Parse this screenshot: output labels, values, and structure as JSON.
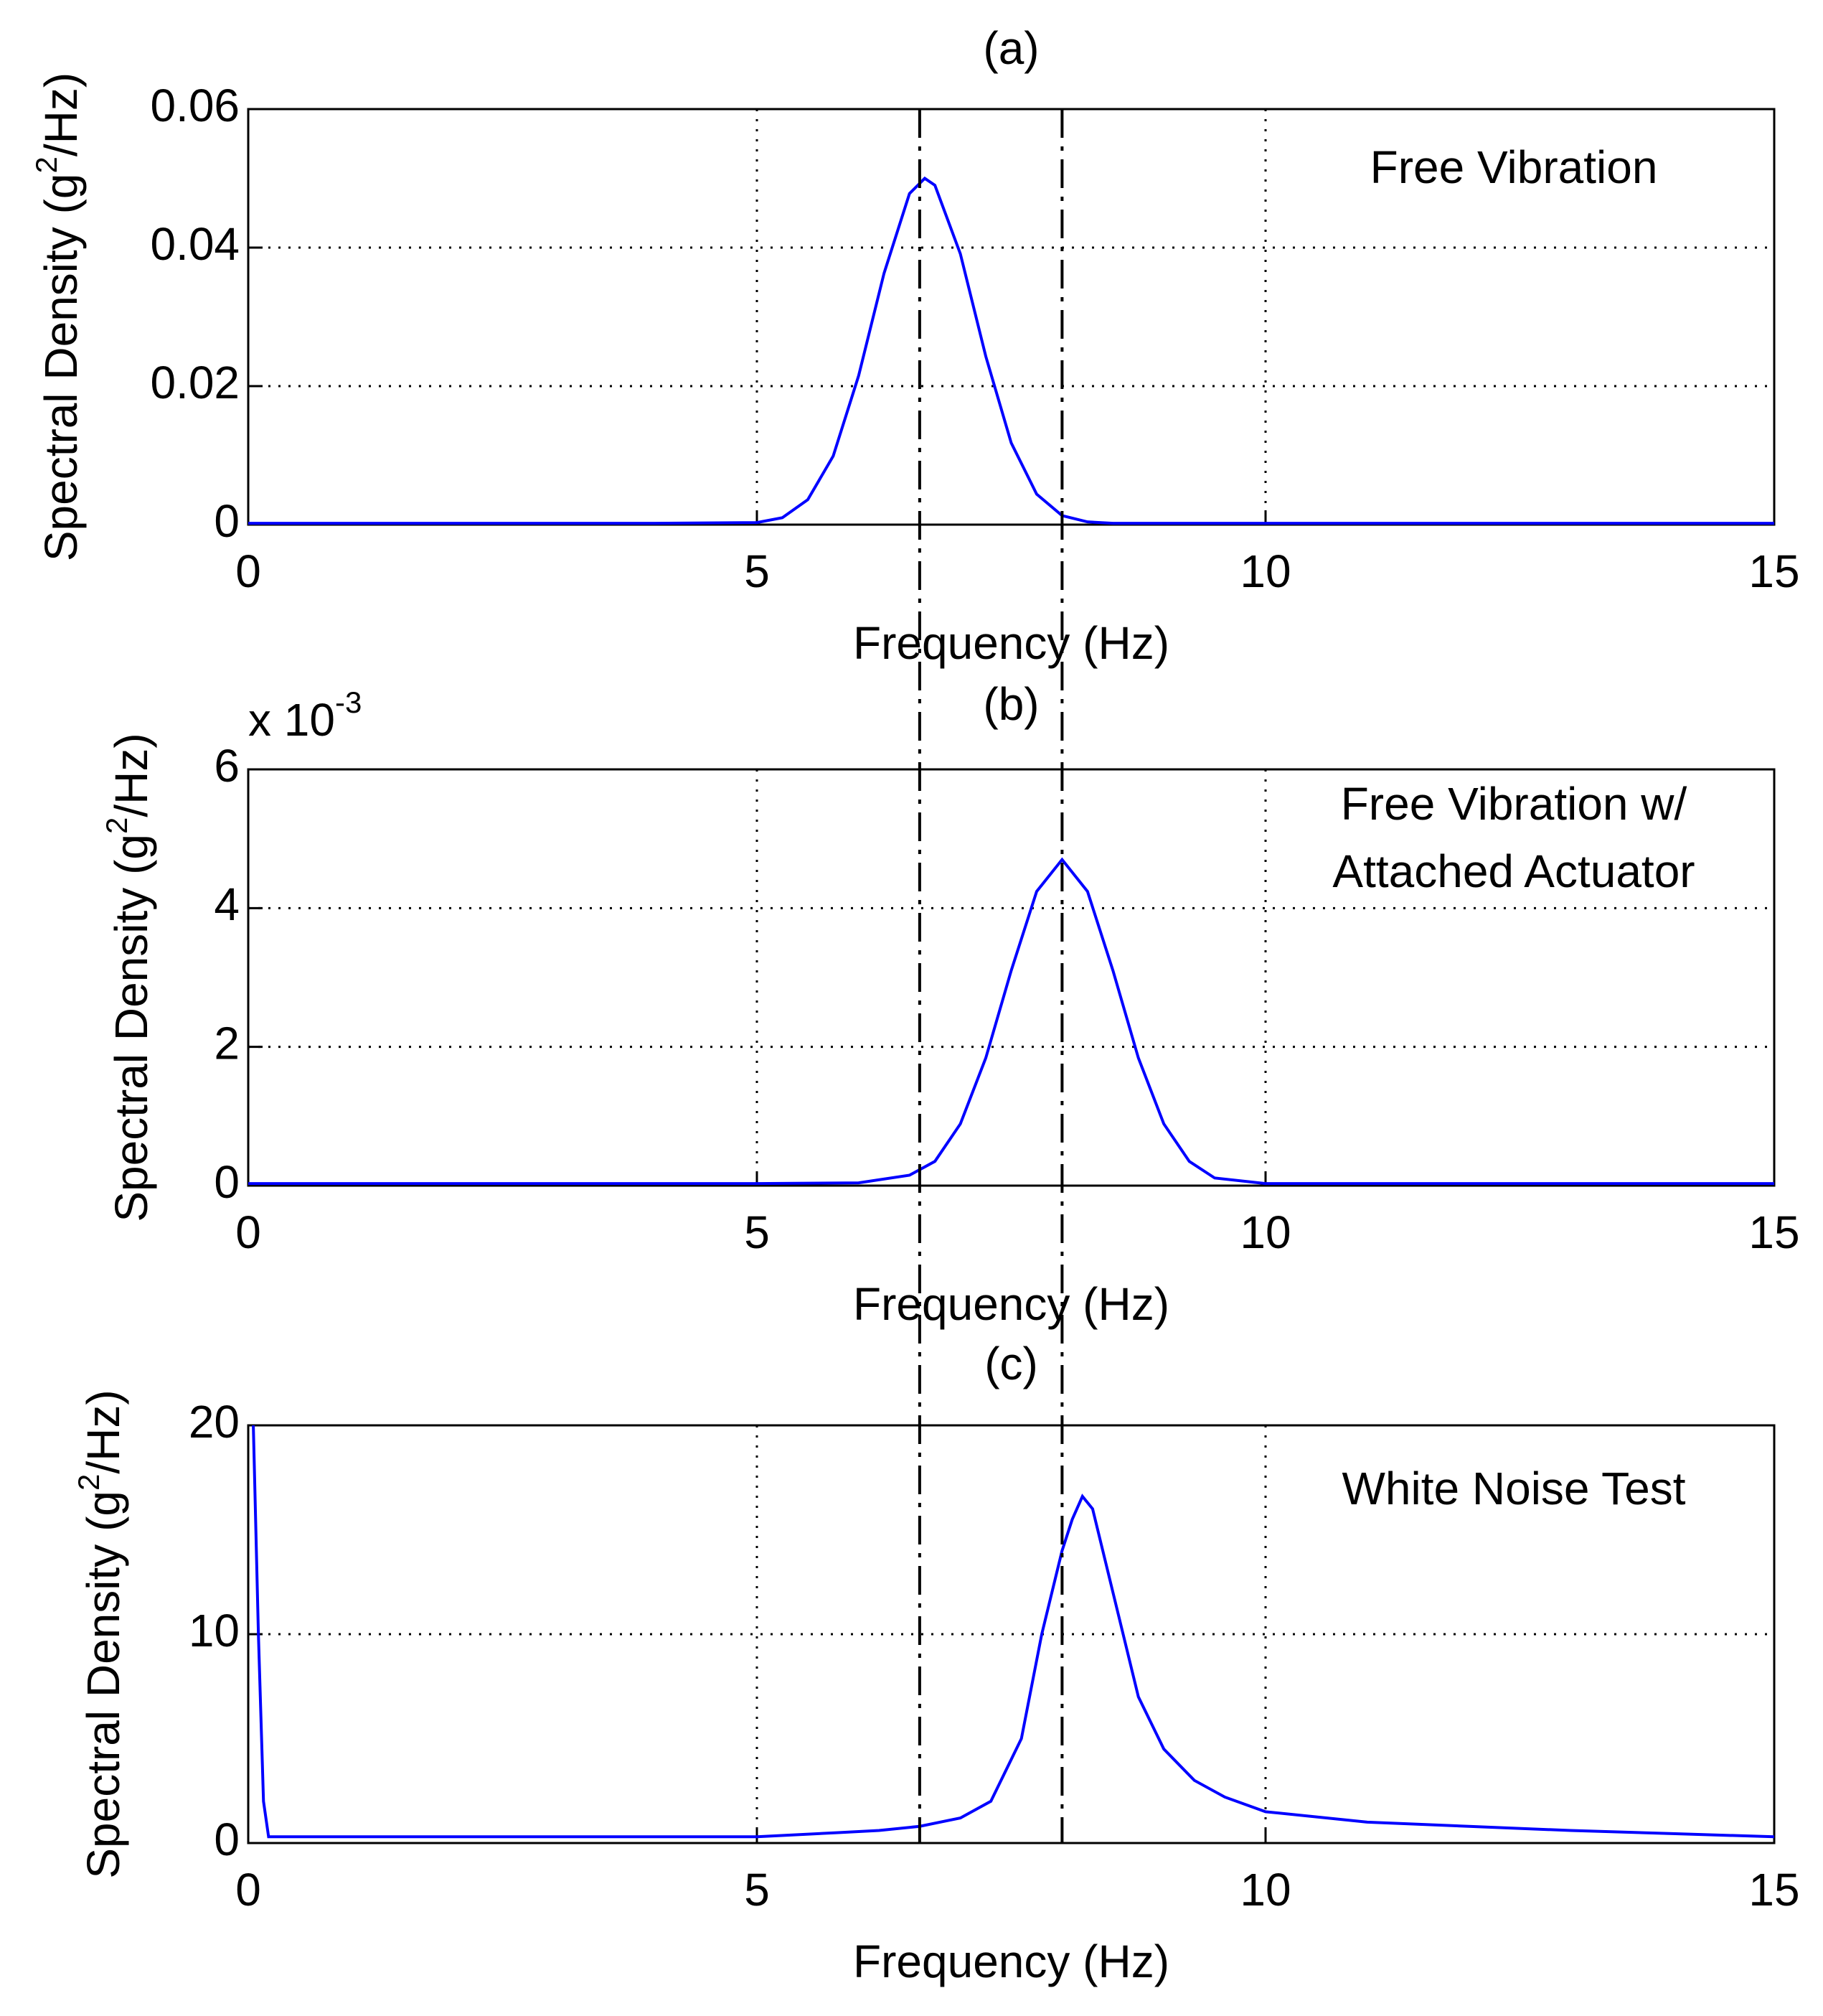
{
  "chart_data": [
    {
      "type": "line",
      "title": "(a)",
      "xlabel": "Frequency (Hz)",
      "ylabel": {
        "text": "Spectral Density (g",
        "superscript": "2",
        "suffix": "/Hz)"
      },
      "annotation": [
        "Free Vibration"
      ],
      "xlim": [
        0,
        15
      ],
      "xticks": [
        0,
        5,
        10,
        15
      ],
      "ylim": [
        0,
        0.06
      ],
      "yticks": [
        0,
        0.02,
        0.04,
        0.06
      ],
      "grid": true,
      "series": [
        {
          "name": "Free Vibration",
          "color": "#0000ff",
          "x": [
            0,
            1,
            2,
            3,
            4,
            5,
            5.25,
            5.5,
            5.75,
            6,
            6.25,
            6.5,
            6.65,
            6.75,
            7,
            7.25,
            7.5,
            7.75,
            8,
            8.25,
            8.5,
            9,
            10,
            11,
            12,
            13,
            14,
            15
          ],
          "values": [
            0.0002,
            0.0002,
            0.0002,
            0.0002,
            0.0002,
            0.0003,
            0.001,
            0.0036,
            0.0099,
            0.0215,
            0.0363,
            0.0478,
            0.05,
            0.049,
            0.0391,
            0.0243,
            0.0118,
            0.0044,
            0.0013,
            0.0004,
            0.0002,
            0.0002,
            0.0002,
            0.0002,
            0.0002,
            0.0002,
            0.0002,
            0.0002
          ]
        }
      ]
    },
    {
      "type": "line",
      "title": "(b)",
      "xlabel": "Frequency (Hz)",
      "ylabel": {
        "text": "Spectral Density (g",
        "superscript": "2",
        "suffix": "/Hz)"
      },
      "axis_multiplier": "x 10",
      "axis_multiplier_exponent": "-3",
      "annotation": [
        "Free Vibration w/",
        "Attached Actuator"
      ],
      "xlim": [
        0,
        15
      ],
      "xticks": [
        0,
        5,
        10,
        15
      ],
      "ylim": [
        0,
        0.006
      ],
      "yticks": [
        0,
        {
          "value": 0.002,
          "label": "2"
        },
        {
          "value": 0.004,
          "label": "4"
        },
        {
          "value": 0.006,
          "label": "6"
        }
      ],
      "grid": true,
      "series": [
        {
          "name": "Free Vibration w/ Attached Actuator",
          "color": "#0000ff",
          "x": [
            0,
            1,
            2,
            3,
            4,
            5,
            6,
            6.5,
            6.75,
            7,
            7.25,
            7.5,
            7.75,
            8,
            8.25,
            8.5,
            8.75,
            9,
            9.25,
            9.5,
            10,
            11,
            12,
            13,
            14,
            15
          ],
          "values": [
            3e-05,
            3e-05,
            3e-05,
            3e-05,
            3e-05,
            3e-05,
            4e-05,
            0.00015,
            0.00035,
            0.00089,
            0.00184,
            0.0031,
            0.00424,
            0.0047,
            0.00424,
            0.0031,
            0.00184,
            0.00089,
            0.00035,
            0.00011,
            3e-05,
            3e-05,
            3e-05,
            3e-05,
            3e-05,
            3e-05
          ]
        }
      ]
    },
    {
      "type": "line",
      "title": "(c)",
      "xlabel": "Frequency (Hz)",
      "ylabel": {
        "text": "Spectral Density (g",
        "superscript": "2",
        "suffix": "/Hz)"
      },
      "annotation": [
        "White Noise Test"
      ],
      "xlim": [
        0,
        15
      ],
      "xticks": [
        0,
        5,
        10,
        15
      ],
      "ylim": [
        0,
        20
      ],
      "yticks": [
        0,
        10,
        20
      ],
      "grid": true,
      "series": [
        {
          "name": "White Noise Test",
          "color": "#0000ff",
          "x": [
            0.05,
            0.1,
            0.15,
            0.2,
            1,
            2,
            3,
            4,
            5,
            5.8,
            6.2,
            6.6,
            7,
            7.3,
            7.6,
            7.8,
            8,
            8.1,
            8.2,
            8.3,
            8.5,
            8.75,
            9,
            9.3,
            9.6,
            10,
            11,
            12,
            13,
            14,
            15
          ],
          "values": [
            20,
            10,
            2,
            0.3,
            0.3,
            0.3,
            0.3,
            0.3,
            0.3,
            0.5,
            0.6,
            0.8,
            1.2,
            2,
            5,
            10,
            14,
            15.5,
            16.6,
            16,
            12,
            7,
            4.5,
            3,
            2.2,
            1.5,
            1,
            0.8,
            0.6,
            0.45,
            0.3
          ]
        }
      ]
    }
  ],
  "reference_lines_x": [
    6.6,
    8.0
  ]
}
